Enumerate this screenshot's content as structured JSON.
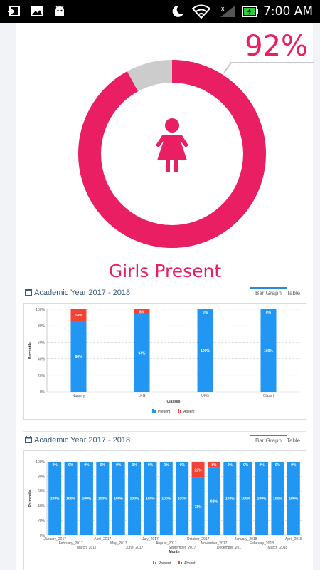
{
  "status_bar": {
    "time": "7:00 AM"
  },
  "summary": {
    "percent": "92%",
    "percent_value": 0.92,
    "label": "Girls Present",
    "colors": {
      "present": "#e91e63",
      "absent": "#cccccc"
    }
  },
  "charts": [
    {
      "title": "Academic Year 2017 - 2018",
      "tabs": {
        "bar": "Bar Graph",
        "table": "Table"
      },
      "legend": {
        "present": "Present",
        "absent": "Absent"
      }
    },
    {
      "title": "Academic Year 2017 - 2018",
      "tabs": {
        "bar": "Bar Graph",
        "table": "Table"
      },
      "legend": {
        "present": "Present",
        "absent": "Absent"
      }
    }
  ],
  "chart_data": [
    {
      "type": "bar",
      "stacked": true,
      "xlabel": "Classes",
      "ylabel": "Percentile",
      "ylim": [
        0,
        100
      ],
      "yticks": [
        "0%",
        "20%",
        "40%",
        "60%",
        "80%",
        "100%"
      ],
      "categories": [
        "Nursery",
        "LKG",
        "UKG",
        "Class I"
      ],
      "series": [
        {
          "name": "Present",
          "color": "#2196f3",
          "values": [
            86,
            94,
            100,
            100
          ],
          "labels": [
            "86%",
            "94%",
            "100%",
            "100%"
          ]
        },
        {
          "name": "Absent",
          "color": "#f44336",
          "values": [
            14,
            6,
            0,
            0
          ],
          "labels": [
            "14%",
            "6%",
            "0%",
            "0%"
          ]
        }
      ]
    },
    {
      "type": "bar",
      "stacked": true,
      "xlabel": "Month",
      "ylabel": "Percentile",
      "ylim": [
        0,
        100
      ],
      "yticks": [
        "0%",
        "20%",
        "40%",
        "60%",
        "80%",
        "100%"
      ],
      "categories": [
        "January_2017",
        "February_2017",
        "March_2017",
        "April_2017",
        "May_2017",
        "June_2017",
        "July_2017",
        "August_2017",
        "September_2017",
        "October_2017",
        "November_2017",
        "December_2017",
        "January_2018",
        "February_2018",
        "March_2018",
        "April_2018"
      ],
      "series": [
        {
          "name": "Present",
          "color": "#2196f3",
          "values": [
            100,
            100,
            100,
            100,
            100,
            100,
            100,
            100,
            100,
            78,
            92,
            100,
            100,
            100,
            100,
            100
          ],
          "labels": [
            "100%",
            "100%",
            "100%",
            "100%",
            "100%",
            "100%",
            "100%",
            "100%",
            "100%",
            "78%",
            "92%",
            "100%",
            "100%",
            "100%",
            "100%",
            "100%"
          ]
        },
        {
          "name": "Absent",
          "color": "#f44336",
          "values": [
            0,
            0,
            0,
            0,
            0,
            0,
            0,
            0,
            0,
            22,
            8,
            0,
            0,
            0,
            0,
            0
          ],
          "labels": [
            "0%",
            "0%",
            "0%",
            "0%",
            "0%",
            "0%",
            "0%",
            "0%",
            "0%",
            "22%",
            "8%",
            "0%",
            "0%",
            "0%",
            "0%",
            "0%"
          ]
        }
      ]
    }
  ]
}
